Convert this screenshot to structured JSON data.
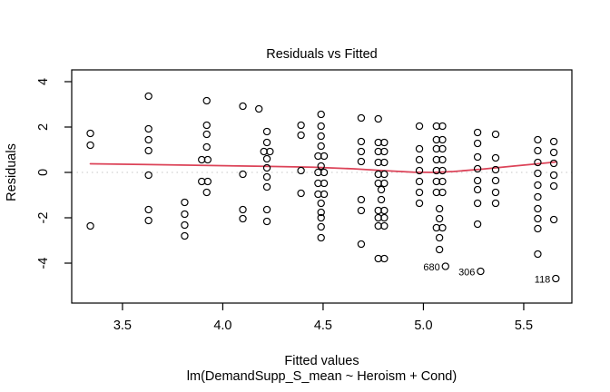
{
  "figure": {
    "title": "Residuals vs Fitted",
    "xlabel": "Fitted values",
    "model_caption": "lm(DemandSupp_S_mean ~ Heroism + Cond)",
    "ylabel": "Residuals"
  },
  "chart_data": {
    "type": "scatter",
    "title": "Residuals vs Fitted",
    "xlabel": "Fitted values",
    "model_caption": "lm(DemandSupp_S_mean ~ Heroism + Cond)",
    "ylabel": "Residuals",
    "xlim": [
      3.247,
      5.74
    ],
    "ylim": [
      -5.76,
      4.52
    ],
    "xticks": [
      3.5,
      4.0,
      4.5,
      5.0,
      5.5
    ],
    "yticks": [
      -4,
      -2,
      0,
      2,
      4
    ],
    "grid": false,
    "legend": "none",
    "point_style": {
      "marker": "open-circle",
      "color": "#000000"
    },
    "zero_line": {
      "y": 0,
      "color": "#c6c6c6",
      "style": "dotted"
    },
    "smoother": {
      "color": "#dc4358",
      "points": [
        [
          3.34,
          0.38
        ],
        [
          3.6,
          0.35
        ],
        [
          3.9,
          0.31
        ],
        [
          4.2,
          0.27
        ],
        [
          4.45,
          0.23
        ],
        [
          4.65,
          0.16
        ],
        [
          4.8,
          0.08
        ],
        [
          4.95,
          0.01
        ],
        [
          5.05,
          0.0
        ],
        [
          5.15,
          0.04
        ],
        [
          5.3,
          0.15
        ],
        [
          5.45,
          0.28
        ],
        [
          5.57,
          0.38
        ],
        [
          5.66,
          0.46
        ]
      ]
    },
    "points": [
      [
        3.34,
        1.72
      ],
      [
        3.34,
        1.2
      ],
      [
        3.34,
        -2.36
      ],
      [
        3.63,
        3.36
      ],
      [
        3.63,
        1.92
      ],
      [
        3.63,
        1.44
      ],
      [
        3.63,
        0.96
      ],
      [
        3.63,
        -0.12
      ],
      [
        3.63,
        -1.64
      ],
      [
        3.63,
        -2.12
      ],
      [
        3.81,
        -1.32
      ],
      [
        3.81,
        -1.84
      ],
      [
        3.81,
        -2.32
      ],
      [
        3.81,
        -2.8
      ],
      [
        3.92,
        3.16
      ],
      [
        3.92,
        2.08
      ],
      [
        3.92,
        1.68
      ],
      [
        3.92,
        1.12
      ],
      [
        3.895,
        0.56
      ],
      [
        3.925,
        0.56
      ],
      [
        3.895,
        -0.4
      ],
      [
        3.925,
        -0.4
      ],
      [
        3.92,
        -0.88
      ],
      [
        4.1,
        2.92
      ],
      [
        4.1,
        -0.08
      ],
      [
        4.1,
        -1.64
      ],
      [
        4.1,
        -2.04
      ],
      [
        4.18,
        2.8
      ],
      [
        4.22,
        1.8
      ],
      [
        4.22,
        1.32
      ],
      [
        4.205,
        0.92
      ],
      [
        4.235,
        0.92
      ],
      [
        4.22,
        0.6
      ],
      [
        4.22,
        0.2
      ],
      [
        4.22,
        -0.2
      ],
      [
        4.22,
        -0.64
      ],
      [
        4.22,
        -1.64
      ],
      [
        4.22,
        -2.16
      ],
      [
        4.39,
        2.08
      ],
      [
        4.39,
        1.64
      ],
      [
        4.39,
        0.08
      ],
      [
        4.39,
        -0.92
      ],
      [
        4.49,
        2.56
      ],
      [
        4.49,
        2.04
      ],
      [
        4.49,
        1.6
      ],
      [
        4.49,
        1.16
      ],
      [
        4.475,
        0.72
      ],
      [
        4.505,
        0.72
      ],
      [
        4.49,
        0.28
      ],
      [
        4.475,
        0.0
      ],
      [
        4.505,
        0.0
      ],
      [
        4.475,
        -0.48
      ],
      [
        4.505,
        -0.48
      ],
      [
        4.475,
        -0.96
      ],
      [
        4.505,
        -0.96
      ],
      [
        4.49,
        -1.36
      ],
      [
        4.49,
        -1.76
      ],
      [
        4.49,
        -2.0
      ],
      [
        4.49,
        -2.4
      ],
      [
        4.49,
        -2.88
      ],
      [
        4.69,
        2.4
      ],
      [
        4.69,
        1.36
      ],
      [
        4.69,
        0.92
      ],
      [
        4.69,
        0.48
      ],
      [
        4.69,
        -1.2
      ],
      [
        4.69,
        -1.68
      ],
      [
        4.69,
        -3.16
      ],
      [
        4.775,
        2.36
      ],
      [
        4.775,
        1.32
      ],
      [
        4.805,
        1.32
      ],
      [
        4.775,
        0.92
      ],
      [
        4.805,
        0.92
      ],
      [
        4.775,
        0.44
      ],
      [
        4.805,
        0.44
      ],
      [
        4.775,
        -0.08
      ],
      [
        4.805,
        -0.08
      ],
      [
        4.775,
        -0.48
      ],
      [
        4.805,
        -0.48
      ],
      [
        4.79,
        -0.76
      ],
      [
        4.79,
        -1.2
      ],
      [
        4.775,
        -1.68
      ],
      [
        4.805,
        -1.68
      ],
      [
        4.775,
        -2.0
      ],
      [
        4.805,
        -2.0
      ],
      [
        4.775,
        -2.36
      ],
      [
        4.805,
        -2.36
      ],
      [
        4.775,
        -3.8
      ],
      [
        4.805,
        -3.8
      ],
      [
        4.98,
        2.04
      ],
      [
        4.98,
        1.04
      ],
      [
        4.98,
        0.56
      ],
      [
        4.98,
        0.08
      ],
      [
        4.98,
        -0.4
      ],
      [
        4.98,
        -0.88
      ],
      [
        4.98,
        -1.36
      ],
      [
        5.065,
        2.04
      ],
      [
        5.095,
        2.04
      ],
      [
        5.065,
        1.44
      ],
      [
        5.095,
        1.44
      ],
      [
        5.065,
        1.04
      ],
      [
        5.095,
        1.04
      ],
      [
        5.065,
        0.56
      ],
      [
        5.095,
        0.56
      ],
      [
        5.065,
        0.08
      ],
      [
        5.095,
        0.08
      ],
      [
        5.065,
        -0.4
      ],
      [
        5.095,
        -0.4
      ],
      [
        5.065,
        -0.88
      ],
      [
        5.095,
        -0.88
      ],
      [
        5.08,
        -1.6
      ],
      [
        5.08,
        -2.04
      ],
      [
        5.065,
        -2.44
      ],
      [
        5.095,
        -2.44
      ],
      [
        5.08,
        -2.88
      ],
      [
        5.08,
        -3.4
      ],
      [
        5.27,
        1.76
      ],
      [
        5.27,
        1.28
      ],
      [
        5.27,
        0.68
      ],
      [
        5.27,
        0.16
      ],
      [
        5.27,
        -0.36
      ],
      [
        5.27,
        -0.76
      ],
      [
        5.27,
        -1.36
      ],
      [
        5.27,
        -2.28
      ],
      [
        5.36,
        1.68
      ],
      [
        5.36,
        0.64
      ],
      [
        5.36,
        0.12
      ],
      [
        5.36,
        -0.36
      ],
      [
        5.36,
        -0.88
      ],
      [
        5.36,
        -1.36
      ],
      [
        5.57,
        1.44
      ],
      [
        5.57,
        0.96
      ],
      [
        5.57,
        0.44
      ],
      [
        5.57,
        -0.04
      ],
      [
        5.57,
        -0.56
      ],
      [
        5.57,
        -1.08
      ],
      [
        5.57,
        -1.6
      ],
      [
        5.57,
        -2.04
      ],
      [
        5.57,
        -2.48
      ],
      [
        5.57,
        -3.6
      ],
      [
        5.65,
        1.36
      ],
      [
        5.65,
        0.88
      ],
      [
        5.65,
        0.4
      ],
      [
        5.65,
        -0.12
      ],
      [
        5.65,
        -0.6
      ],
      [
        5.65,
        -2.08
      ]
    ],
    "labeled_points": [
      {
        "label": "680",
        "x": 5.11,
        "y": -4.14
      },
      {
        "label": "306",
        "x": 5.285,
        "y": -4.36
      },
      {
        "label": "118",
        "x": 5.66,
        "y": -4.68
      }
    ]
  }
}
